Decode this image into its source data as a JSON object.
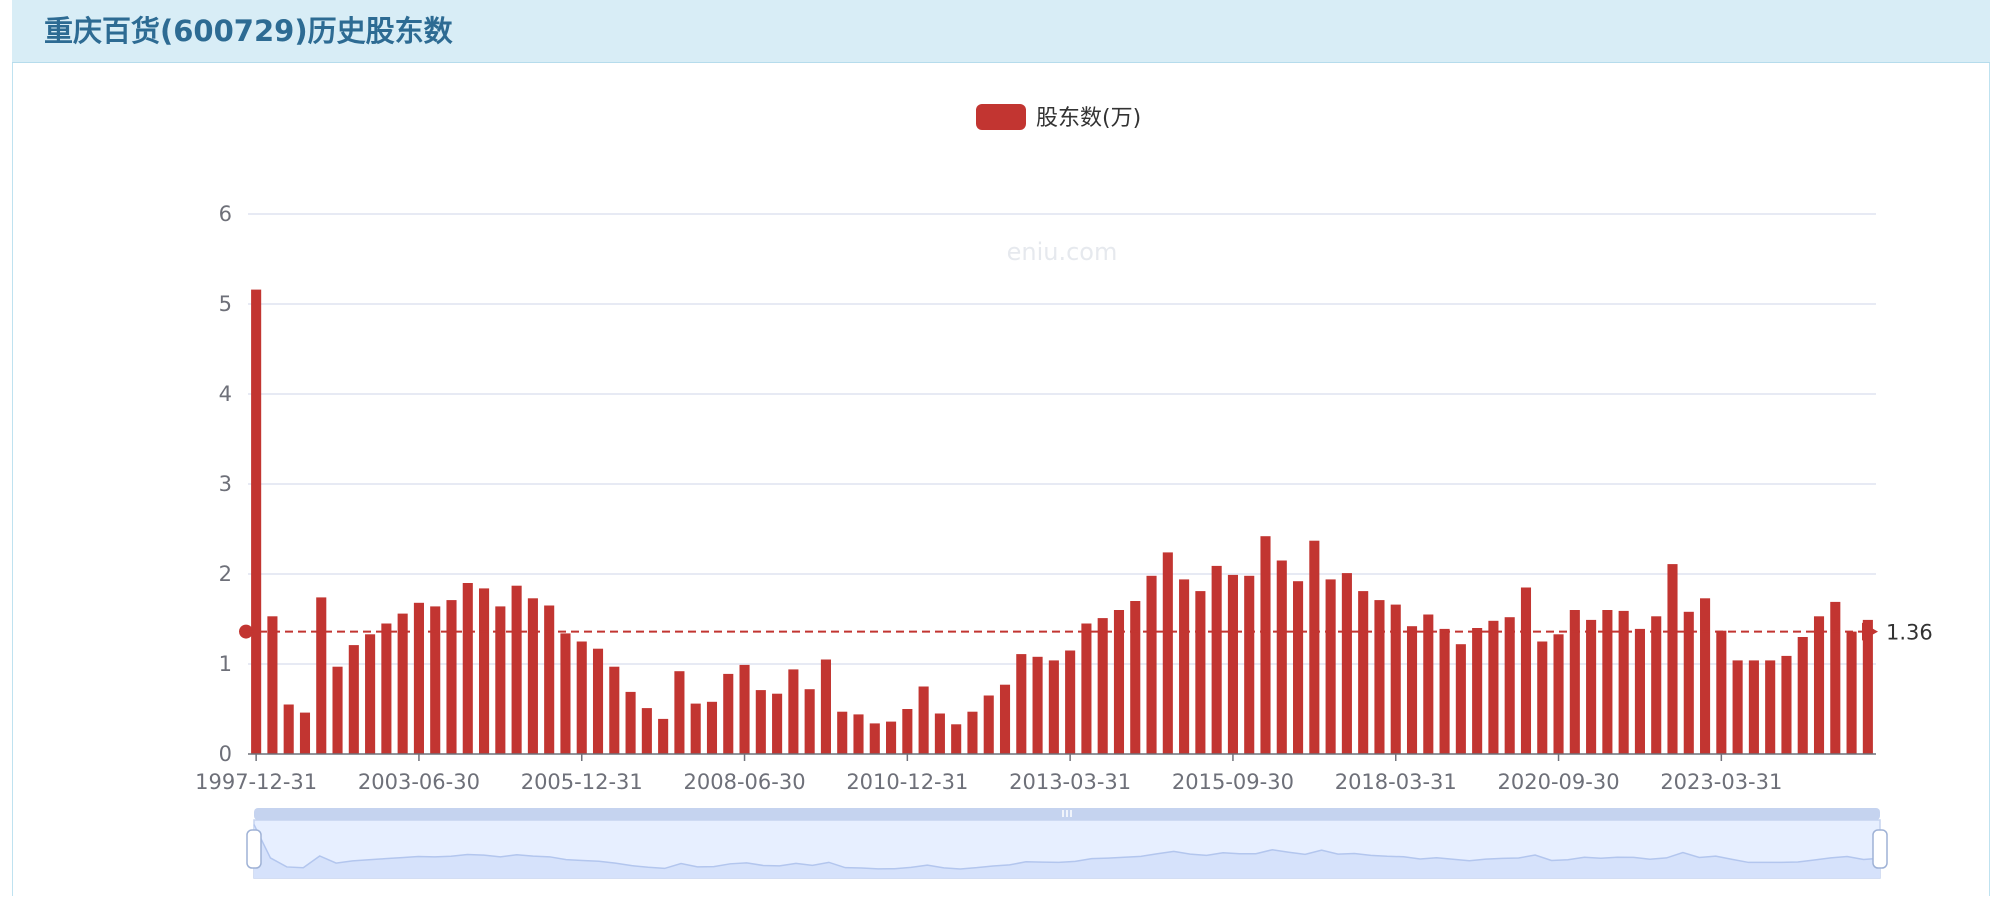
{
  "page": {
    "title": "重庆百货(600729)历史股东数"
  },
  "legend": {
    "label": "股东数(万)",
    "color": "#c23531"
  },
  "watermark": "eniu.com",
  "colors": {
    "bar": "#c23531",
    "grid": "#dfe4f1",
    "axis": "#6e7079",
    "zoom_fill": "#e7efff",
    "zoom_border": "#c5d3ef",
    "zoom_line": "#b3c6ee"
  },
  "chart_data": {
    "type": "bar",
    "ylim": [
      0,
      6
    ],
    "y_ticks": [
      0,
      1,
      2,
      3,
      4,
      5,
      6
    ],
    "x_tick_labels": [
      {
        "index": 0,
        "label": "1997-12-31"
      },
      {
        "index": 10,
        "label": "2003-06-30"
      },
      {
        "index": 20,
        "label": "2005-12-31"
      },
      {
        "index": 30,
        "label": "2008-06-30"
      },
      {
        "index": 40,
        "label": "2010-12-31"
      },
      {
        "index": 50,
        "label": "2013-03-31"
      },
      {
        "index": 60,
        "label": "2015-09-30"
      },
      {
        "index": 70,
        "label": "2018-03-31"
      },
      {
        "index": 80,
        "label": "2020-09-30"
      },
      {
        "index": 90,
        "label": "2023-03-31"
      }
    ],
    "series": [
      {
        "name": "股东数(万)",
        "values": [
          5.16,
          1.53,
          0.55,
          0.46,
          1.74,
          0.97,
          1.21,
          1.33,
          1.45,
          1.56,
          1.68,
          1.64,
          1.71,
          1.9,
          1.84,
          1.64,
          1.87,
          1.73,
          1.65,
          1.34,
          1.25,
          1.17,
          0.97,
          0.69,
          0.51,
          0.39,
          0.92,
          0.56,
          0.58,
          0.89,
          0.99,
          0.71,
          0.67,
          0.94,
          0.72,
          1.05,
          0.47,
          0.44,
          0.34,
          0.36,
          0.5,
          0.75,
          0.45,
          0.33,
          0.47,
          0.65,
          0.77,
          1.11,
          1.08,
          1.04,
          1.15,
          1.45,
          1.51,
          1.6,
          1.7,
          1.98,
          2.24,
          1.94,
          1.81,
          2.09,
          1.99,
          1.98,
          2.42,
          2.15,
          1.92,
          2.37,
          1.94,
          2.01,
          1.81,
          1.71,
          1.66,
          1.42,
          1.55,
          1.39,
          1.22,
          1.4,
          1.48,
          1.52,
          1.85,
          1.25,
          1.33,
          1.6,
          1.49,
          1.6,
          1.59,
          1.39,
          1.53,
          2.11,
          1.58,
          1.73,
          1.37,
          1.04,
          1.04,
          1.04,
          1.09,
          1.3,
          1.53,
          1.69,
          1.36,
          1.49
        ]
      }
    ],
    "mark_line": {
      "type": "average",
      "value": 1.36,
      "label": "1.36"
    }
  }
}
